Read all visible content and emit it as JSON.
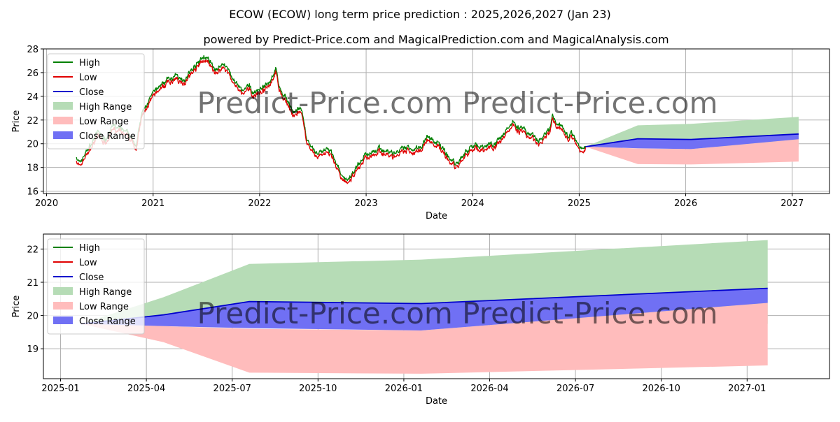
{
  "title": "ECOW (ECOW) long term price prediction : 2025,2026,2027 (Jan 23)",
  "subtitle": "powered by Predict-Price.com and MagicalPrediction.com and MagicalAnalysis.com",
  "watermark": "Predict-Price.com",
  "colors": {
    "high": "#008000",
    "low": "#e00000",
    "close": "#0000cc",
    "high_range": "#b6dcb6",
    "low_range": "#ffbcbc",
    "close_range": "#7070f4"
  },
  "legend": [
    {
      "key": "high",
      "label": "High",
      "kind": "line"
    },
    {
      "key": "low",
      "label": "Low",
      "kind": "line"
    },
    {
      "key": "close",
      "label": "Close",
      "kind": "line"
    },
    {
      "key": "high_range",
      "label": "High Range",
      "kind": "patch"
    },
    {
      "key": "low_range",
      "label": "Low Range",
      "kind": "patch"
    },
    {
      "key": "close_range",
      "label": "Close Range",
      "kind": "patch"
    }
  ],
  "chart_data": [
    {
      "type": "line",
      "name": "history",
      "xlabel": "Date",
      "ylabel": "Price",
      "xlim": [
        2019.97,
        2027.35
      ],
      "ylim": [
        15.8,
        28.0
      ],
      "x_ticks": [
        2020,
        2021,
        2022,
        2023,
        2024,
        2025,
        2026,
        2027
      ],
      "x_tick_labels": [
        "2020",
        "2021",
        "2022",
        "2023",
        "2024",
        "2025",
        "2026",
        "2027"
      ],
      "y_ticks": [
        16,
        18,
        20,
        22,
        24,
        26,
        28
      ],
      "grid": true,
      "legend_position": "top-left",
      "price_anchors": [
        [
          2020.28,
          18.8
        ],
        [
          2020.31,
          18.1
        ],
        [
          2020.36,
          19.0
        ],
        [
          2020.42,
          19.8
        ],
        [
          2020.48,
          20.8
        ],
        [
          2020.55,
          20.2
        ],
        [
          2020.62,
          21.3
        ],
        [
          2020.7,
          21.0
        ],
        [
          2020.78,
          20.5
        ],
        [
          2020.84,
          19.8
        ],
        [
          2020.9,
          22.5
        ],
        [
          2020.97,
          23.6
        ],
        [
          2021.05,
          24.6
        ],
        [
          2021.13,
          25.2
        ],
        [
          2021.22,
          25.5
        ],
        [
          2021.3,
          25.3
        ],
        [
          2021.36,
          26.0
        ],
        [
          2021.42,
          26.6
        ],
        [
          2021.48,
          27.2
        ],
        [
          2021.53,
          26.7
        ],
        [
          2021.58,
          26.0
        ],
        [
          2021.62,
          26.3
        ],
        [
          2021.67,
          26.6
        ],
        [
          2021.72,
          25.8
        ],
        [
          2021.78,
          24.8
        ],
        [
          2021.84,
          24.2
        ],
        [
          2021.9,
          24.6
        ],
        [
          2021.95,
          24.1
        ],
        [
          2022.02,
          24.6
        ],
        [
          2022.08,
          24.8
        ],
        [
          2022.12,
          25.6
        ],
        [
          2022.15,
          26.2
        ],
        [
          2022.18,
          24.8
        ],
        [
          2022.22,
          23.8
        ],
        [
          2022.27,
          23.4
        ],
        [
          2022.32,
          22.3
        ],
        [
          2022.38,
          22.9
        ],
        [
          2022.43,
          20.8
        ],
        [
          2022.48,
          19.3
        ],
        [
          2022.55,
          19.0
        ],
        [
          2022.62,
          19.4
        ],
        [
          2022.68,
          19.0
        ],
        [
          2022.73,
          18.0
        ],
        [
          2022.78,
          16.8
        ],
        [
          2022.85,
          16.9
        ],
        [
          2022.9,
          17.8
        ],
        [
          2022.97,
          18.6
        ],
        [
          2023.05,
          19.2
        ],
        [
          2023.12,
          19.5
        ],
        [
          2023.18,
          19.2
        ],
        [
          2023.25,
          19.0
        ],
        [
          2023.32,
          19.2
        ],
        [
          2023.38,
          19.5
        ],
        [
          2023.45,
          19.4
        ],
        [
          2023.52,
          19.7
        ],
        [
          2023.57,
          20.5
        ],
        [
          2023.62,
          20.1
        ],
        [
          2023.67,
          19.8
        ],
        [
          2023.72,
          19.5
        ],
        [
          2023.78,
          18.6
        ],
        [
          2023.84,
          18.1
        ],
        [
          2023.9,
          18.8
        ],
        [
          2023.96,
          19.3
        ],
        [
          2024.02,
          19.9
        ],
        [
          2024.08,
          19.5
        ],
        [
          2024.15,
          19.7
        ],
        [
          2024.22,
          20.0
        ],
        [
          2024.28,
          20.4
        ],
        [
          2024.33,
          21.2
        ],
        [
          2024.38,
          21.8
        ],
        [
          2024.43,
          21.2
        ],
        [
          2024.5,
          20.8
        ],
        [
          2024.56,
          20.5
        ],
        [
          2024.62,
          20.0
        ],
        [
          2024.68,
          20.6
        ],
        [
          2024.72,
          20.9
        ],
        [
          2024.75,
          22.1
        ],
        [
          2024.8,
          21.6
        ],
        [
          2024.85,
          21.1
        ],
        [
          2024.9,
          20.5
        ],
        [
          2024.95,
          20.6
        ],
        [
          2025.0,
          19.5
        ],
        [
          2025.04,
          19.6
        ],
        [
          2025.06,
          19.7
        ]
      ],
      "forecast": {
        "dates": [
          2025.06,
          2025.55,
          2026.05,
          2027.06
        ],
        "close": [
          19.75,
          20.42,
          20.36,
          20.82
        ],
        "high_range": {
          "upper": [
            19.75,
            21.55,
            21.68,
            22.27
          ],
          "lower": [
            19.75,
            19.75,
            19.75,
            19.75
          ]
        },
        "low_range": {
          "upper": [
            19.75,
            19.6,
            19.55,
            20.38
          ],
          "lower": [
            19.75,
            18.28,
            18.25,
            18.5
          ]
        },
        "close_range": {
          "upper": [
            19.75,
            20.42,
            20.36,
            20.82
          ],
          "lower": [
            19.75,
            19.62,
            19.55,
            20.38
          ]
        }
      }
    },
    {
      "type": "area",
      "name": "forecast-zoom",
      "xlabel": "Date",
      "ylabel": "Price",
      "xlim": [
        2024.95,
        2027.24
      ],
      "ylim": [
        18.1,
        22.45
      ],
      "x_ticks": [
        2025.0,
        2025.25,
        2025.5,
        2025.75,
        2026.0,
        2026.25,
        2026.5,
        2026.75,
        2027.0
      ],
      "x_tick_labels": [
        "2025-01",
        "2025-04",
        "2025-07",
        "2025-10",
        "2026-01",
        "2026-04",
        "2026-07",
        "2026-10",
        "2027-01"
      ],
      "y_ticks": [
        19,
        20,
        21,
        22
      ],
      "grid": true,
      "legend_position": "top-left",
      "dates": [
        2025.06,
        2025.3,
        2025.55,
        2026.05,
        2027.06
      ],
      "close": [
        19.75,
        20.02,
        20.42,
        20.36,
        20.82
      ],
      "high_range": {
        "upper": [
          19.75,
          20.55,
          21.55,
          21.68,
          22.27
        ],
        "lower": [
          19.75,
          19.75,
          19.75,
          19.75,
          19.75
        ]
      },
      "low_range": {
        "upper": [
          19.75,
          19.68,
          19.6,
          19.55,
          20.38
        ],
        "lower": [
          19.75,
          19.2,
          18.28,
          18.25,
          18.5
        ]
      },
      "close_range": {
        "upper": [
          19.75,
          20.02,
          20.42,
          20.36,
          20.82
        ],
        "lower": [
          19.75,
          19.68,
          19.62,
          19.55,
          20.38
        ]
      }
    }
  ]
}
